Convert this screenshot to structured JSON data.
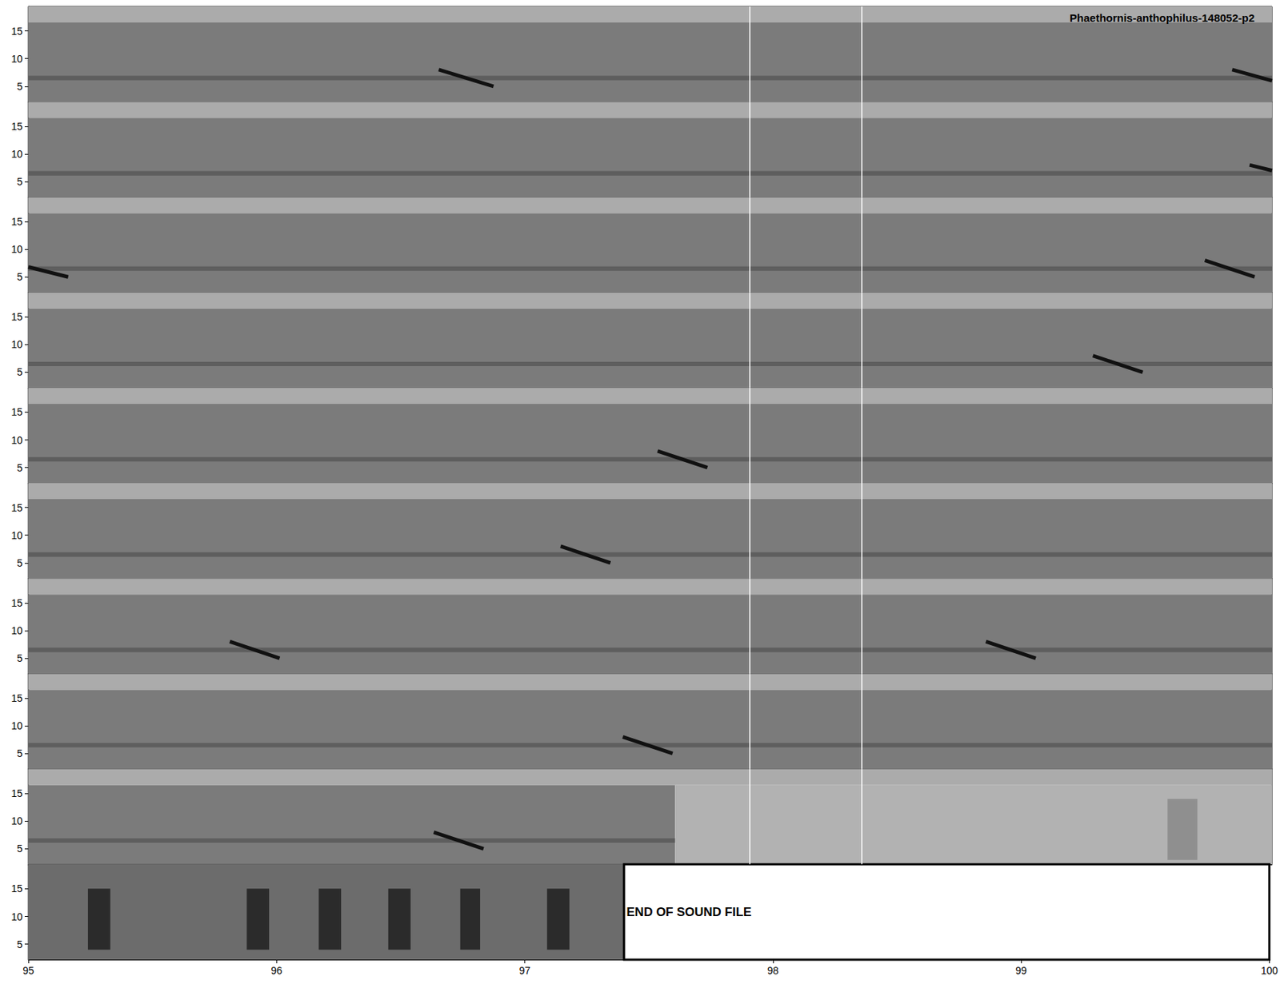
{
  "chart_data": {
    "type": "spectrogram",
    "title": "Phaethornis-anthophilus-148052-p2",
    "xlim": [
      95,
      100
    ],
    "xticks": [
      95,
      96,
      97,
      98,
      99,
      100
    ],
    "ylim": [
      2.2,
      19.4
    ],
    "yticks": [
      5,
      10,
      15
    ],
    "grid": false,
    "vlines": [
      97.9,
      98.35
    ],
    "spectrum_top": 16.5,
    "hum_band": [
      6.1,
      6.9
    ],
    "rows": [
      {
        "calls": [
          {
            "start": 96.65,
            "end": 96.87,
            "f_start": 8,
            "f_end": 5
          },
          {
            "start": 99.84,
            "end": 100,
            "f_start": 8,
            "f_end": 6
          }
        ]
      },
      {
        "calls": [
          {
            "start": 99.91,
            "end": 100,
            "f_start": 8,
            "f_end": 7
          }
        ]
      },
      {
        "calls": [
          {
            "start": 95,
            "end": 95.16,
            "f_start": 6.8,
            "f_end": 5
          },
          {
            "start": 99.73,
            "end": 99.93,
            "f_start": 8,
            "f_end": 5
          }
        ]
      },
      {
        "calls": [
          {
            "start": 99.28,
            "end": 99.48,
            "f_start": 8,
            "f_end": 5
          }
        ]
      },
      {
        "calls": [
          {
            "start": 97.53,
            "end": 97.73,
            "f_start": 8,
            "f_end": 5
          }
        ]
      },
      {
        "calls": [
          {
            "start": 97.14,
            "end": 97.34,
            "f_start": 8,
            "f_end": 5
          }
        ]
      },
      {
        "calls": [
          {
            "start": 95.81,
            "end": 96.01,
            "f_start": 8,
            "f_end": 5
          },
          {
            "start": 98.85,
            "end": 99.05,
            "f_start": 8,
            "f_end": 5
          }
        ]
      },
      {
        "calls": [
          {
            "start": 97.39,
            "end": 97.59,
            "f_start": 8,
            "f_end": 5
          }
        ]
      },
      {
        "calls": [
          {
            "start": 96.63,
            "end": 96.83,
            "f_start": 8,
            "f_end": 5
          }
        ],
        "recording_end": 97.6,
        "bursts": [
          {
            "start": 99.58,
            "end": 99.7,
            "f_low": 3,
            "f_high": 14
          }
        ]
      },
      {
        "calls": [],
        "recording_end": 97.4,
        "end_text": "END OF SOUND FILE",
        "bursts": [
          {
            "start": 95.24,
            "end": 95.33,
            "f_low": 4,
            "f_high": 15
          },
          {
            "start": 95.88,
            "end": 95.97,
            "f_low": 4,
            "f_high": 15
          },
          {
            "start": 96.17,
            "end": 96.26,
            "f_low": 4,
            "f_high": 15
          },
          {
            "start": 96.45,
            "end": 96.54,
            "f_low": 4,
            "f_high": 15
          },
          {
            "start": 96.74,
            "end": 96.82,
            "f_low": 4,
            "f_high": 15
          },
          {
            "start": 97.09,
            "end": 97.18,
            "f_low": 4,
            "f_high": 15
          }
        ]
      }
    ]
  }
}
